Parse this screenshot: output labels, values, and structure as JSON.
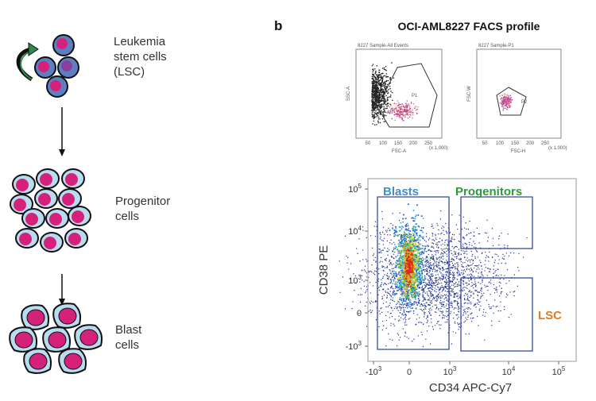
{
  "left_panel": {
    "stages": [
      {
        "label_lines": [
          "Leukemia",
          "stem cells",
          "(LSC)"
        ]
      },
      {
        "label_lines": [
          "Progenitor",
          "cells"
        ]
      },
      {
        "label_lines": [
          "Blast",
          "cells"
        ]
      }
    ]
  },
  "right_panel": {
    "panel_letter": "b",
    "title": "OCI-AML8227 FACS profile",
    "plot1": {
      "header": "8227 Sample-All Events",
      "y_label": "SSC-A",
      "x_label": "FSC-A",
      "scale_note": "(x 1,000)",
      "gate": "P1",
      "ticks": [
        "50",
        "100",
        "150",
        "200",
        "250"
      ]
    },
    "plot2": {
      "header": "8227 Sample-P1",
      "y_label": "FSC-W",
      "x_label": "FSC-H",
      "scale_note": "(x 1,000)",
      "gate": "P2",
      "ticks": [
        "50",
        "100",
        "150",
        "200",
        "250"
      ]
    },
    "main_plot": {
      "y_label": "CD38 PE",
      "x_label": "CD34 APC-Cy7",
      "gates": [
        {
          "label": "Blasts"
        },
        {
          "label": "Progenitors"
        },
        {
          "label": "LSC"
        }
      ],
      "x_ticks": [
        {
          "base": "-10",
          "exp": "3"
        },
        {
          "base": "0"
        },
        {
          "base": "10",
          "exp": "3"
        },
        {
          "base": "10",
          "exp": "4"
        },
        {
          "base": "10",
          "exp": "5"
        }
      ],
      "y_ticks": [
        {
          "base": "10",
          "exp": "5"
        },
        {
          "base": "10",
          "exp": "4"
        },
        {
          "base": "10",
          "exp": "3"
        },
        {
          "base": "0"
        },
        {
          "base": "-10",
          "exp": "3"
        }
      ]
    }
  }
}
